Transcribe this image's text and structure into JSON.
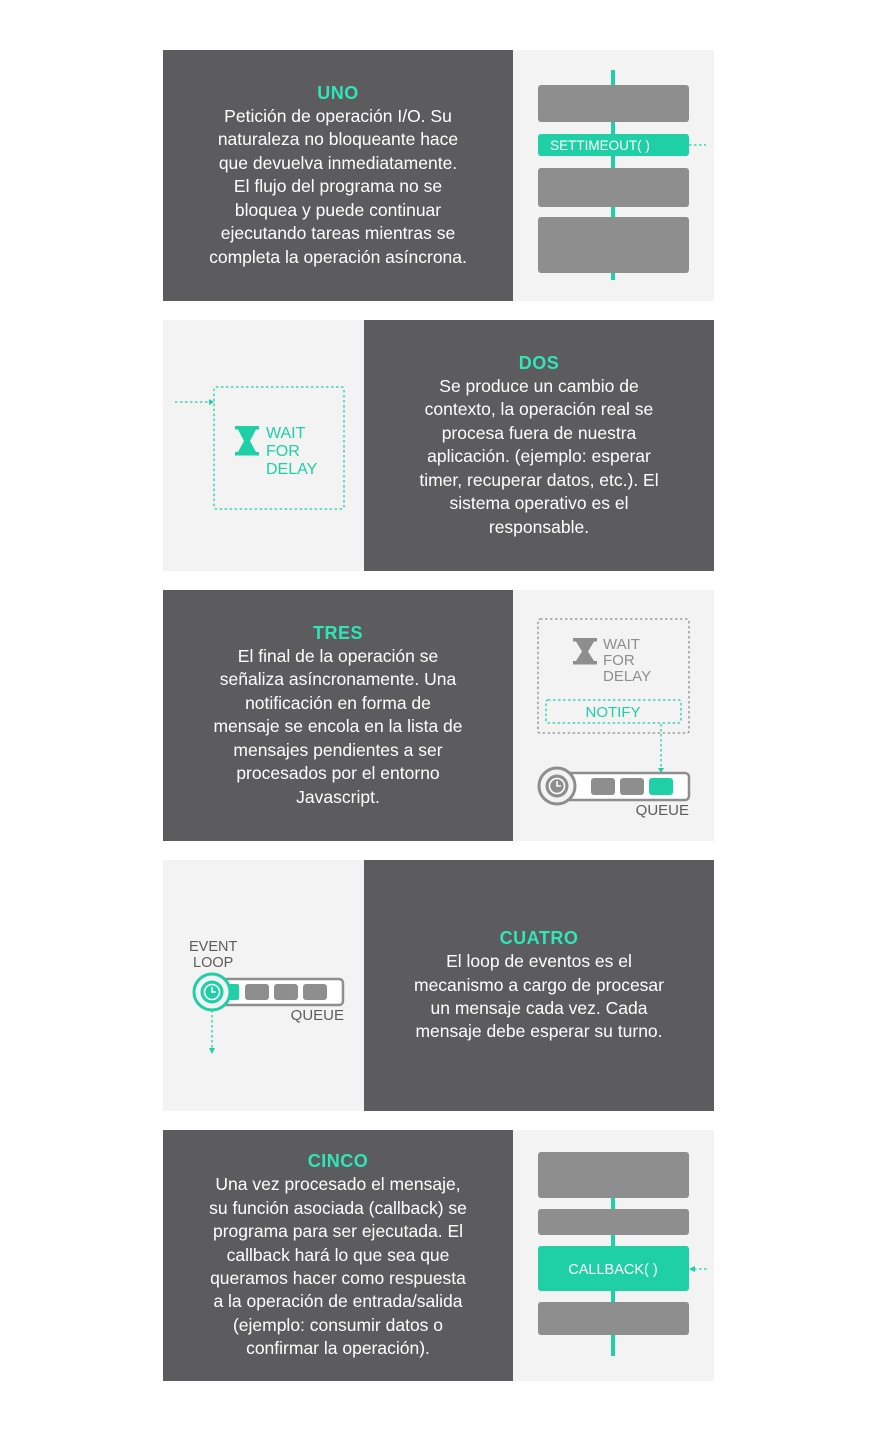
{
  "colors": {
    "dark": "#5c5c5e",
    "accent": "#1fcfa5",
    "accent_text": "#2ee6b8",
    "gray_block": "#8e8e8f",
    "panel_bg": "#f3f3f3"
  },
  "steps": [
    {
      "title": "UNO",
      "body": "Petición de operación I/O. Su\nnaturaleza no bloqueante hace\nque devuelva inmediatamente.\nEl flujo del programa no se\nbloquea y puede continuar\nejecutando tareas mientras se\ncompleta la operación asíncrona.",
      "diagram": {
        "call_label": "SETTIMEOUT( )"
      }
    },
    {
      "title": "DOS",
      "body": "Se produce un cambio de\ncontexto, la operación real se\nprocesa fuera de nuestra\naplicación. (ejemplo: esperar\ntimer, recuperar datos, etc.). El\nsistema operativo es el\nresponsable.",
      "diagram": {
        "wait_lines": [
          "WAIT",
          "FOR",
          "DELAY"
        ],
        "icon": "hourglass-icon"
      }
    },
    {
      "title": "TRES",
      "body": "El final de la operación se\nseñaliza asíncronamente. Una\nnotificación en forma de\nmensaje se encola en la lista de\nmensajes pendientes a ser\nprocesados por el entorno\nJavascript.",
      "diagram": {
        "wait_lines": [
          "WAIT",
          "FOR",
          "DELAY"
        ],
        "notify_label": "NOTIFY",
        "queue_label": "QUEUE"
      }
    },
    {
      "title": "CUATRO",
      "body": "El loop de eventos es el\nmecanismo a cargo de procesar\nun mensaje cada vez. Cada\nmensaje debe esperar su turno.",
      "diagram": {
        "event_loop_lines": [
          "EVENT",
          "LOOP"
        ],
        "queue_label": "QUEUE"
      }
    },
    {
      "title": "CINCO",
      "body": "Una vez procesado el mensaje,\nsu función asociada (callback) se\nprograma para ser ejecutada. El\ncallback hará lo que sea que\nqueramos hacer como respuesta\na la operación de entrada/salida\n(ejemplo: consumir datos o\nconfirmar la operación).",
      "diagram": {
        "callback_label": "CALLBACK( )"
      }
    }
  ]
}
